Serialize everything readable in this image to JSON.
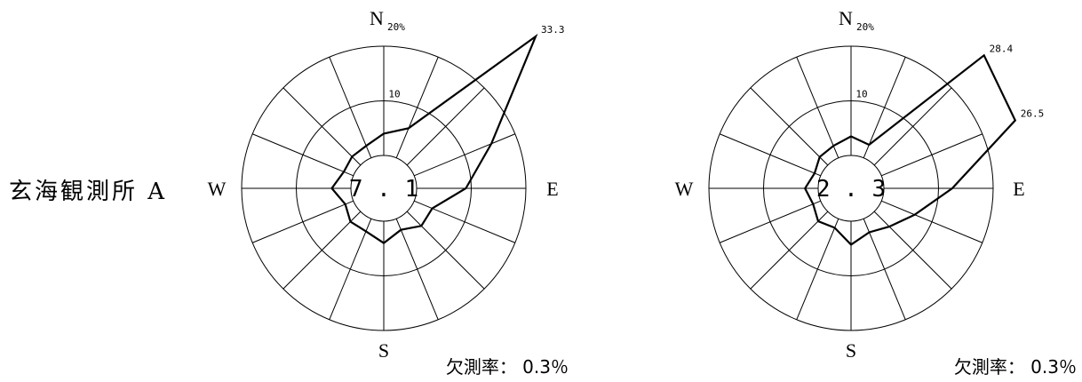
{
  "station_label": "玄海観測所 A",
  "chart_data": [
    {
      "type": "radar",
      "chart_kind": "wind rose",
      "directions": [
        "N",
        "NNE",
        "NE",
        "ENE",
        "E",
        "ESE",
        "SE",
        "SSE",
        "S",
        "SSW",
        "SW",
        "WSW",
        "W",
        "WNW",
        "NW",
        "NNW"
      ],
      "cardinal_labels": {
        "n": "N",
        "e": "E",
        "s": "S",
        "w": "W"
      },
      "ring_label_outer": "20%",
      "ring_label_mid": "10",
      "calm_value": "7.1",
      "values": [
        4.0,
        5.9,
        33.3,
        15.3,
        9.0,
        3.6,
        3.7,
        2.2,
        4.0,
        2.5,
        2.6,
        1.6,
        3.5,
        1.9,
        2.2,
        2.4
      ],
      "peak_labels": [
        {
          "direction": "NE",
          "text": "33.3"
        }
      ],
      "rlim": [
        0,
        20
      ],
      "missing_rate_label": "欠測率：",
      "missing_rate_value": "0.3％",
      "grid": true
    },
    {
      "type": "radar",
      "chart_kind": "wind rose",
      "directions": [
        "N",
        "NNE",
        "NE",
        "ENE",
        "E",
        "ESE",
        "SE",
        "SSE",
        "S",
        "SSW",
        "SW",
        "WSW",
        "W",
        "WNW",
        "NW",
        "NNW"
      ],
      "cardinal_labels": {
        "n": "N",
        "e": "E",
        "s": "S",
        "w": "W"
      },
      "ring_label_outer": "20%",
      "ring_label_mid": "10",
      "calm_value": "2.3",
      "values": [
        3.5,
        2.6,
        28.4,
        26.5,
        12.5,
        6.6,
        3.9,
        2.7,
        4.3,
        1.8,
        2.5,
        1.5,
        2.4,
        1.2,
        2.1,
        2.4
      ],
      "peak_labels": [
        {
          "direction": "NE",
          "text": "28.4"
        },
        {
          "direction": "ENE",
          "text": "26.5"
        }
      ],
      "rlim": [
        0,
        20
      ],
      "missing_rate_label": "欠測率：",
      "missing_rate_value": "0.3％",
      "grid": true
    }
  ]
}
